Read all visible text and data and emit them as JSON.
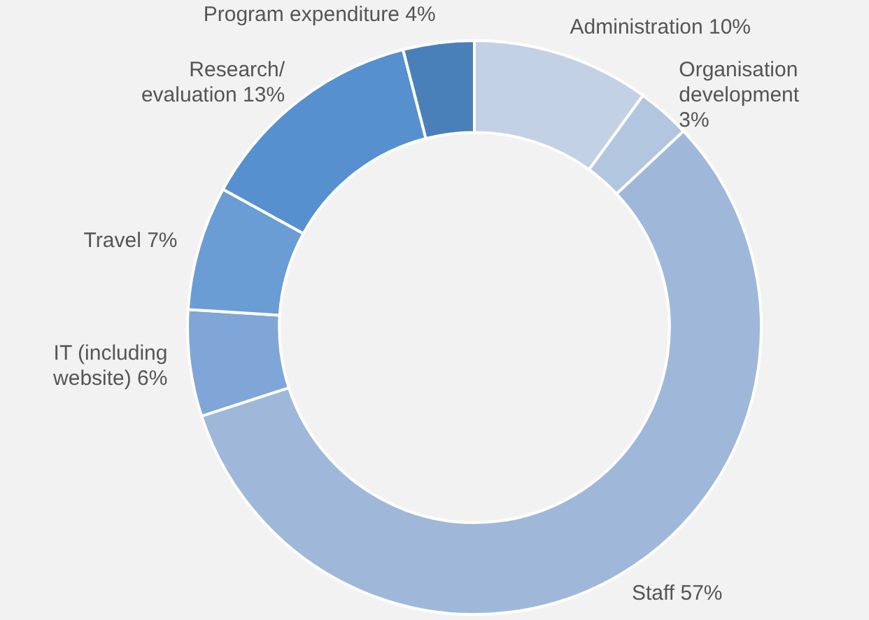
{
  "chart_data": {
    "type": "donut",
    "categories": [
      "Administration",
      "Organisation development",
      "Staff",
      "IT (including website)",
      "Travel",
      "Research/ evaluation",
      "Program expenditure"
    ],
    "values": [
      10,
      3,
      57,
      6,
      7,
      13,
      4
    ],
    "value_labels": [
      "10%",
      "3%",
      "57%",
      "6%",
      "7%",
      "13%",
      "4%"
    ],
    "colors": [
      "#c3d1e5",
      "#b3c6df",
      "#9fb8da",
      "#7fa6d6",
      "#6a9dd4",
      "#5690cf",
      "#4a80ba"
    ],
    "legend": false
  }
}
